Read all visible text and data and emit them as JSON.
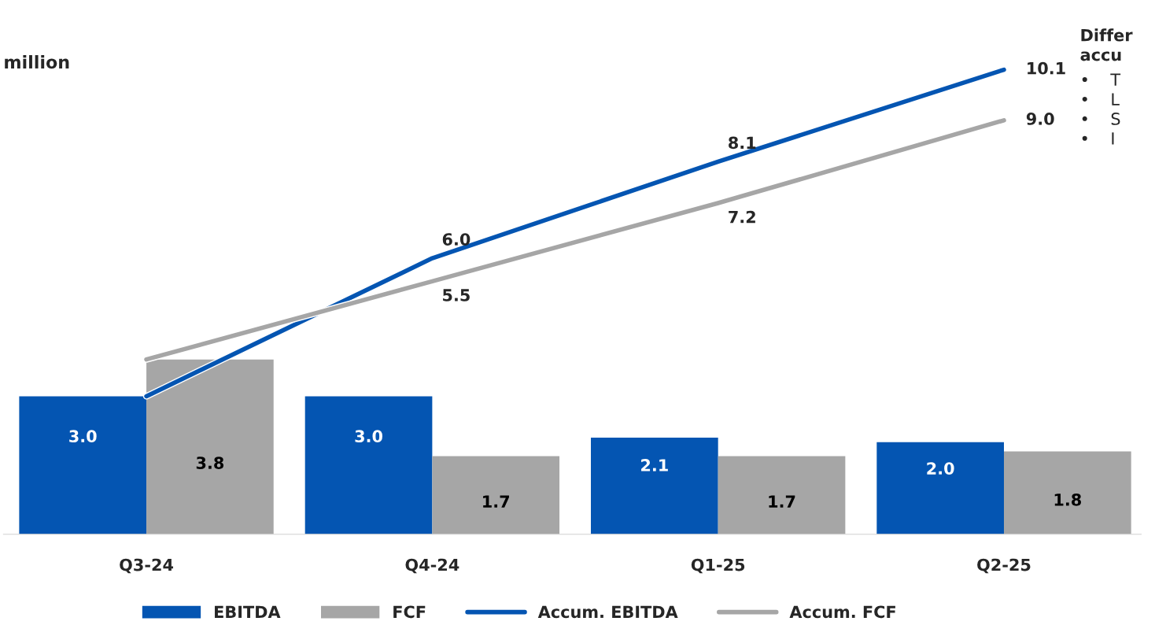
{
  "chart_data": {
    "type": "bar",
    "ylabel": "million",
    "categories": [
      "Q3-24",
      "Q4-24",
      "Q1-25",
      "Q2-25"
    ],
    "series": [
      {
        "name": "EBITDA",
        "color": "#0455b2",
        "values": [
          3.0,
          3.0,
          2.1,
          2.0
        ],
        "value_labels": [
          "3.0",
          "3.0",
          "2.1",
          "2.0"
        ]
      },
      {
        "name": "FCF",
        "color": "#a6a6a6",
        "values": [
          3.8,
          1.7,
          1.7,
          1.8
        ],
        "value_labels": [
          "3.8",
          "1.7",
          "1.7",
          "1.8"
        ]
      },
      {
        "name": "Accum. EBITDA",
        "type": "line",
        "color": "#0455b2",
        "values": [
          3.0,
          6.0,
          8.1,
          10.1
        ],
        "value_labels": [
          null,
          "6.0",
          "8.1",
          "10.1"
        ]
      },
      {
        "name": "Accum. FCF",
        "type": "line",
        "color": "#a6a6a6",
        "values": [
          3.8,
          5.5,
          7.2,
          9.0
        ],
        "value_labels": [
          null,
          "5.5",
          "7.2",
          "9.0"
        ]
      }
    ],
    "annotations": [
      "Differ\naccu",
      "•    T\n•    L\n•    S\n•    I"
    ],
    "legend": "bottom",
    "grid": false
  }
}
